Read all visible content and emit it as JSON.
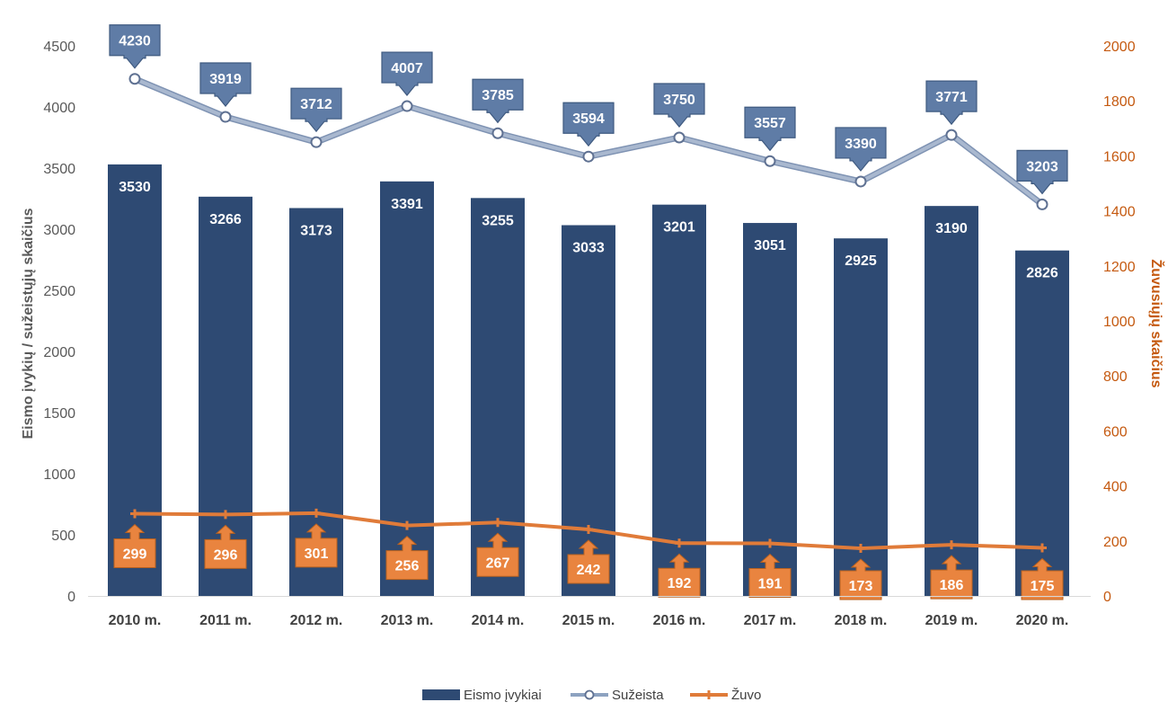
{
  "chart_data": {
    "type": "bar",
    "categories": [
      "2010 m.",
      "2011 m.",
      "2012 m.",
      "2013 m.",
      "2014 m.",
      "2015 m.",
      "2016 m.",
      "2017 m.",
      "2018 m.",
      "2019 m.",
      "2020 m."
    ],
    "series": [
      {
        "name": "Eismo įvykiai",
        "type": "bar",
        "axis": "left",
        "color": "#2e4a73",
        "values": [
          3530,
          3266,
          3173,
          3391,
          3255,
          3033,
          3201,
          3051,
          2925,
          3190,
          2826
        ]
      },
      {
        "name": "Sužeista",
        "type": "line",
        "axis": "left",
        "color": "#8da2c0",
        "values": [
          4230,
          3919,
          3712,
          4007,
          3785,
          3594,
          3750,
          3557,
          3390,
          3771,
          3203
        ]
      },
      {
        "name": "Žuvo",
        "type": "line",
        "axis": "right",
        "color": "#e07b39",
        "values": [
          299,
          296,
          301,
          256,
          267,
          242,
          192,
          191,
          173,
          186,
          175
        ]
      }
    ],
    "ylabel": "Eismo įvykių / sužeistųjų skaičius",
    "y2label": "Žuvusiųjų skaičius",
    "ylim": [
      0,
      4500
    ],
    "y2lim": [
      0,
      2000
    ],
    "yticks": [
      0,
      500,
      1000,
      1500,
      2000,
      2500,
      3000,
      3500,
      4000,
      4500
    ],
    "y2ticks": [
      0,
      200,
      400,
      600,
      800,
      1000,
      1200,
      1400,
      1600,
      1800,
      2000
    ],
    "grid": false,
    "legend_position": "bottom"
  }
}
